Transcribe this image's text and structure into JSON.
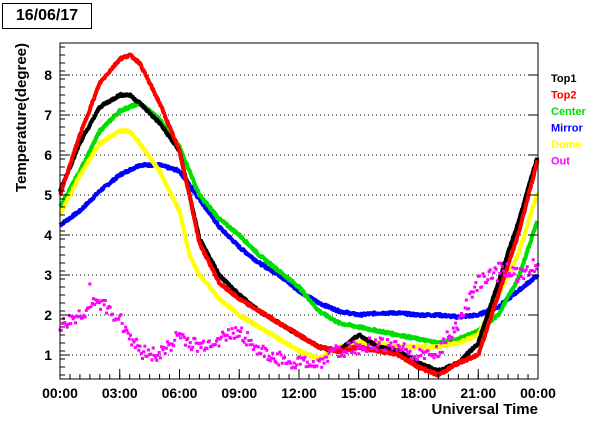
{
  "title": "16/06/17",
  "chart_data": {
    "type": "scatter",
    "xlabel": "Universal Time",
    "ylabel": "Temperature(degree)",
    "xlim": [
      0,
      24
    ],
    "ylim": [
      0.4,
      8.8
    ],
    "x_ticks": [
      "00:00",
      "03:00",
      "06:00",
      "09:00",
      "12:00",
      "15:00",
      "18:00",
      "21:00",
      "00:00"
    ],
    "y_ticks": [
      "1",
      "2",
      "3",
      "4",
      "5",
      "6",
      "7",
      "8"
    ],
    "grid": "horizontal dotted",
    "legend_position": "right",
    "series": [
      {
        "name": "Top1",
        "color": "#000000",
        "x": [
          0,
          1,
          2,
          3,
          3.5,
          4,
          5,
          6,
          6.5,
          7,
          8,
          9,
          10,
          11,
          12,
          13,
          14,
          15,
          16,
          17,
          18,
          19,
          20,
          21,
          22,
          23,
          24
        ],
        "y": [
          5.1,
          6.3,
          7.2,
          7.5,
          7.5,
          7.3,
          6.8,
          6.1,
          5.0,
          3.9,
          3.0,
          2.5,
          2.1,
          1.8,
          1.5,
          1.2,
          1.1,
          1.5,
          1.2,
          1.1,
          0.8,
          0.6,
          0.8,
          1.3,
          2.8,
          4.3,
          6.0
        ]
      },
      {
        "name": "Top2",
        "color": "#ff0000",
        "x": [
          0,
          1,
          2,
          3,
          3.5,
          4,
          5,
          6,
          6.5,
          7,
          8,
          9,
          10,
          11,
          12,
          13,
          14,
          15,
          16,
          17,
          18,
          19,
          20,
          21,
          22,
          23,
          24
        ],
        "y": [
          5.0,
          6.5,
          7.8,
          8.4,
          8.5,
          8.3,
          7.3,
          6.1,
          5.0,
          3.8,
          2.8,
          2.4,
          2.1,
          1.8,
          1.5,
          1.2,
          1.1,
          1.2,
          1.1,
          1.0,
          0.7,
          0.5,
          0.8,
          1.0,
          2.5,
          4.0,
          5.9
        ]
      },
      {
        "name": "Center",
        "color": "#00dd00",
        "x": [
          0,
          1,
          2,
          3,
          4,
          5,
          6,
          7,
          8,
          9,
          10,
          11,
          12,
          13,
          14,
          15,
          16,
          17,
          18,
          19,
          20,
          21,
          22,
          23,
          24
        ],
        "y": [
          4.7,
          5.6,
          6.6,
          7.1,
          7.3,
          6.9,
          6.2,
          5.0,
          4.4,
          4.0,
          3.5,
          3.1,
          2.7,
          2.1,
          1.8,
          1.7,
          1.6,
          1.5,
          1.4,
          1.3,
          1.4,
          1.6,
          2.0,
          2.9,
          4.4
        ]
      },
      {
        "name": "Mirror",
        "color": "#0000ff",
        "x": [
          0,
          1,
          2,
          3,
          4,
          5,
          6,
          7,
          8,
          9,
          10,
          11,
          12,
          13,
          14,
          15,
          16,
          17,
          18,
          19,
          20,
          21,
          22,
          23,
          24
        ],
        "y": [
          4.25,
          4.6,
          5.1,
          5.5,
          5.75,
          5.75,
          5.6,
          4.9,
          4.2,
          3.7,
          3.3,
          3.0,
          2.6,
          2.3,
          2.1,
          2.0,
          2.05,
          2.05,
          2.0,
          2.0,
          1.95,
          2.0,
          2.2,
          2.6,
          3.0
        ]
      },
      {
        "name": "Dome",
        "color": "#ffff00",
        "x": [
          0,
          1,
          2,
          3,
          3.5,
          4,
          5,
          6,
          6.5,
          7,
          8,
          9,
          10,
          11,
          12,
          13,
          14,
          15,
          16,
          17,
          18,
          19,
          20,
          21,
          22,
          23,
          24
        ],
        "y": [
          4.5,
          5.5,
          6.3,
          6.6,
          6.6,
          6.3,
          5.6,
          4.6,
          3.5,
          3.0,
          2.4,
          2.0,
          1.7,
          1.4,
          1.1,
          0.9,
          1.2,
          1.3,
          1.3,
          1.2,
          1.2,
          1.2,
          1.3,
          1.5,
          2.5,
          3.5,
          5.1
        ]
      },
      {
        "name": "Out",
        "color": "#ff00ff",
        "x": [
          0,
          1,
          2,
          3,
          4,
          5,
          6,
          6.5,
          7,
          8,
          9,
          10,
          11,
          12,
          13,
          14,
          15,
          16,
          17,
          18,
          19,
          20,
          21,
          22,
          23,
          24
        ],
        "y": [
          1.7,
          2.0,
          2.3,
          1.9,
          1.1,
          1.0,
          1.5,
          1.3,
          1.2,
          1.4,
          1.6,
          1.1,
          0.9,
          0.8,
          0.8,
          1.1,
          1.2,
          1.3,
          1.2,
          1.0,
          1.1,
          1.8,
          2.8,
          3.2,
          3.0,
          3.3
        ]
      }
    ]
  }
}
